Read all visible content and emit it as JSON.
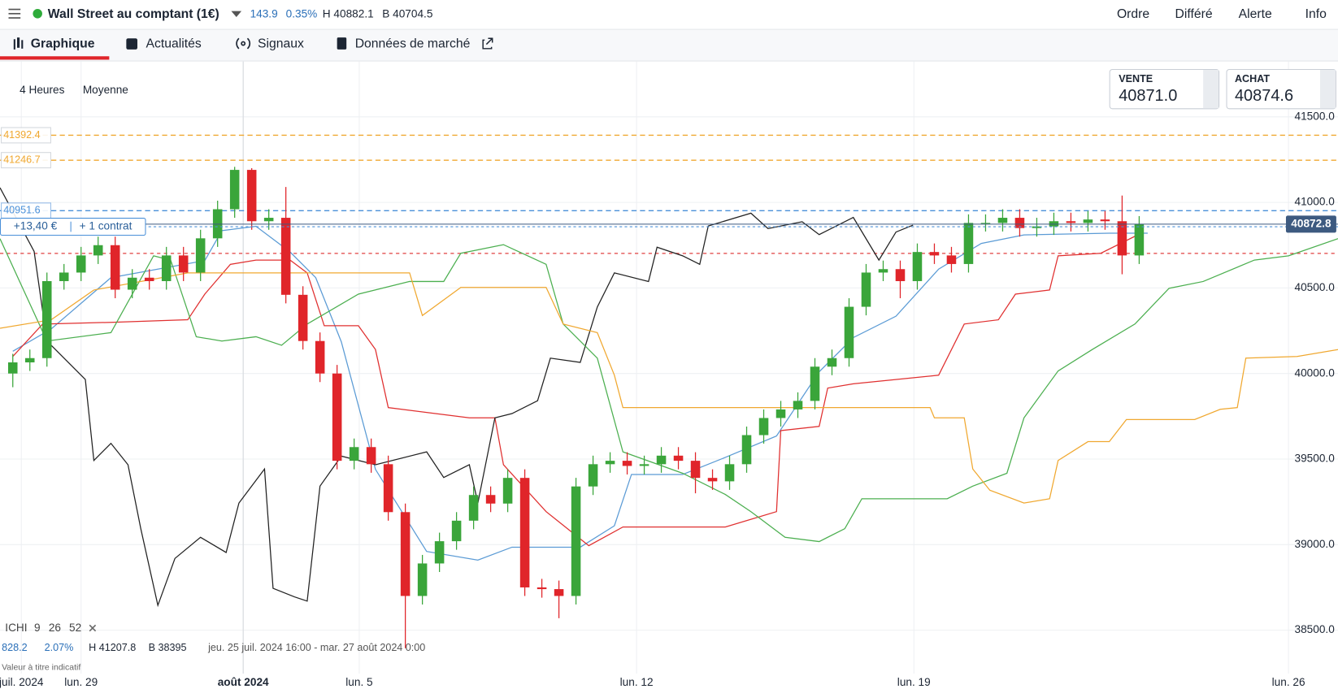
{
  "header": {
    "title": "Wall Street au comptant (1€)",
    "change": "143.9",
    "change_pct": "0.35%",
    "high": "H 40882.1",
    "low": "B 40704.5",
    "actions": [
      "Ordre",
      "Différé",
      "Alerte",
      "Info"
    ]
  },
  "tabs": [
    "Graphique",
    "Actualités",
    "Signaux",
    "Données de marché"
  ],
  "toolbar": {
    "interval": "4 Heures",
    "style": "Moyenne"
  },
  "quote": {
    "sell_label": "VENTE",
    "sell": "40871.0",
    "buy_label": "ACHAT",
    "buy": "40874.6"
  },
  "position": {
    "pnl": "+13,40 €",
    "size": "+ 1 contrat"
  },
  "indicator": {
    "name": "ICHI",
    "params": [
      "9",
      "26",
      "52"
    ]
  },
  "footer": {
    "change": "828.2",
    "change_pct": "2.07%",
    "high": "H 41207.8",
    "low": "B 38395",
    "range": "jeu. 25 juil. 2024 16:00 - mar. 27 août 2024 0:00",
    "note": "Valeur à titre indicatif"
  },
  "chart_data": {
    "type": "candlestick",
    "up_color": "#3aa53a",
    "down_color": "#e0252a",
    "open": [
      40000,
      40065,
      40090,
      40540,
      40590,
      40690,
      40750,
      40490,
      40560,
      40540,
      40690,
      40590,
      40790,
      40960,
      41190,
      40890,
      40910,
      40460,
      40190,
      40000,
      39490,
      39570,
      39470,
      39190,
      38700,
      38890,
      39020,
      39140,
      39290,
      39240,
      39390,
      38750,
      38740,
      38700,
      39340,
      39470,
      39490,
      39460,
      39470,
      39520,
      39490,
      39390,
      39370,
      39470,
      39640,
      39740,
      39790,
      39840,
      40040,
      40090,
      40390,
      40590,
      40610,
      40540,
      40710,
      40690,
      40640,
      40880,
      40880,
      40910,
      40850,
      40860,
      40890,
      40880,
      40900,
      40890,
      40690
    ],
    "high": [
      40115,
      40140,
      40590,
      40640,
      40740,
      40800,
      40800,
      40610,
      40610,
      40740,
      40740,
      40840,
      41010,
      41207.8,
      41200,
      40960,
      41090,
      40510,
      40240,
      40050,
      39620,
      39620,
      39520,
      39240,
      38940,
      39070,
      39190,
      39340,
      39340,
      39440,
      39440,
      38800,
      38790,
      39390,
      39520,
      39540,
      39540,
      39520,
      39570,
      39570,
      39540,
      39440,
      39520,
      39690,
      39790,
      39840,
      39890,
      40090,
      40140,
      40440,
      40640,
      40660,
      40660,
      40760,
      40760,
      40740,
      40930,
      40930,
      40960,
      40960,
      40910,
      40940,
      40940,
      40950,
      40950,
      41040,
      40920
    ],
    "low": [
      39920,
      40015,
      40040,
      40490,
      40540,
      40640,
      40440,
      40440,
      40490,
      40490,
      40540,
      40540,
      40740,
      40910,
      40840,
      40840,
      40410,
      40140,
      39950,
      39440,
      39440,
      39420,
      39140,
      38395,
      38650,
      38840,
      38970,
      39090,
      39190,
      39190,
      38700,
      38690,
      38570,
      38650,
      39290,
      39420,
      39410,
      39410,
      39420,
      39440,
      39300,
      39320,
      39320,
      39420,
      39590,
      39690,
      39740,
      39790,
      39990,
      40040,
      40340,
      40540,
      40440,
      40490,
      40640,
      40590,
      40590,
      40830,
      40830,
      40800,
      40800,
      40810,
      40830,
      40830,
      40840,
      40580,
      40640
    ],
    "close": [
      40065,
      40090,
      40540,
      40590,
      40690,
      40750,
      40490,
      40560,
      40540,
      40690,
      40590,
      40790,
      40960,
      41190,
      40890,
      40910,
      40460,
      40190,
      40000,
      39490,
      39570,
      39470,
      39190,
      38700,
      38890,
      39020,
      39140,
      39290,
      39240,
      39390,
      38750,
      38740,
      38700,
      39340,
      39470,
      39490,
      39460,
      39470,
      39520,
      39490,
      39390,
      39370,
      39470,
      39640,
      39740,
      39790,
      39840,
      40040,
      40090,
      40390,
      40590,
      40610,
      40540,
      40710,
      40690,
      40640,
      40880,
      40880,
      40910,
      40850,
      40860,
      40890,
      40880,
      40900,
      40890,
      40690,
      40872.8
    ],
    "lines": [
      {
        "color": "#5b9bd5",
        "x": [
          0,
          2.25,
          5.75,
          11.25,
          12.25,
          14.25,
          16.25,
          17.75,
          19.25,
          21.25,
          24.25,
          27.25,
          29.25,
          33.25,
          35.25,
          36.25,
          39.25,
          41.75,
          44.75,
          47.25,
          49.25,
          51.75,
          54.25,
          56.75,
          59.25,
          64.25,
          66.5
        ],
        "values": [
          40130,
          40260,
          40560,
          40660,
          40835,
          40860,
          40710,
          40560,
          40185,
          39440,
          38960,
          38910,
          38985,
          38985,
          39110,
          39410,
          39410,
          39510,
          39635,
          40010,
          40210,
          40335,
          40610,
          40760,
          40810,
          40820,
          40820
        ]
      },
      {
        "color": "#e03030",
        "x": [
          0,
          1.75,
          5.75,
          10.25,
          11.25,
          12.75,
          14.25,
          16.25,
          17.25,
          18.25,
          20.25,
          21.25,
          22,
          26.75,
          28.25,
          28.75,
          31.25,
          33.75,
          35.75,
          41.75,
          44.75,
          45,
          47.25,
          47.75,
          49.25,
          54.25,
          55.75,
          57.75,
          58.75,
          60.75,
          61.25,
          63.75,
          66.25
        ],
        "values": [
          40100,
          40289,
          40299,
          40314,
          40464,
          40638,
          40663,
          40663,
          40588,
          40279,
          40279,
          40140,
          39801,
          39741,
          39741,
          39467,
          39193,
          38994,
          39103,
          39103,
          39193,
          39666,
          39691,
          39915,
          39940,
          39990,
          40289,
          40314,
          40464,
          40488,
          40688,
          40703,
          40827
        ]
      },
      {
        "color": "#222222",
        "x": [
          -0.75,
          1.25,
          2,
          4.25,
          4.75,
          5.75,
          6.75,
          7.5,
          8.5,
          9.5,
          11,
          12.5,
          13.25,
          14.75,
          15.25,
          16.5,
          17.25,
          18,
          19.25,
          21.25,
          24.25,
          25.25,
          26.75,
          27.25,
          28.25,
          29.25,
          30.75,
          31.5,
          33.25,
          34.25,
          35.25,
          37.25,
          37.75,
          39.25,
          40.25,
          40.75,
          43.25,
          44.25,
          46.25,
          47.25,
          49.25,
          50.75,
          51.75,
          52.75
        ],
        "values": [
          41086,
          40713,
          40190,
          39965,
          39492,
          39592,
          39467,
          39093,
          38645,
          38919,
          39043,
          38954,
          39243,
          39442,
          38745,
          38695,
          38670,
          39342,
          39517,
          39467,
          39542,
          39392,
          39467,
          39243,
          39741,
          39766,
          39841,
          40090,
          40065,
          40389,
          40588,
          40538,
          40738,
          40688,
          40638,
          40862,
          40937,
          40847,
          40887,
          40812,
          40912,
          40663,
          40827,
          40867
        ]
      },
      {
        "color": "#4caf50",
        "x": [
          -0.75,
          2,
          5.75,
          8.25,
          9.25,
          10.75,
          12.25,
          14.25,
          15.75,
          17.25,
          20.25,
          23.25,
          25.25,
          26.25,
          28.75,
          31.25,
          32.25,
          34.25,
          35.75,
          39.25,
          41.75,
          43.25,
          45.25,
          47.25,
          48.75,
          49.75,
          54.75,
          56.25,
          58.25,
          59.25,
          61.25,
          63.25,
          65.75,
          67.75,
          69.75,
          72.75,
          74.75,
          77.65
        ],
        "values": [
          40788,
          40190,
          40239,
          40688,
          40663,
          40215,
          40190,
          40215,
          40165,
          40289,
          40464,
          40538,
          40538,
          40703,
          40753,
          40638,
          40289,
          40090,
          39542,
          39417,
          39293,
          39193,
          39043,
          39018,
          39093,
          39268,
          39268,
          39342,
          39417,
          39741,
          40015,
          40140,
          40289,
          40498,
          40538,
          40663,
          40688,
          40788
        ]
      },
      {
        "color": "#f0a830",
        "x": [
          -0.75,
          2.25,
          4.75,
          10.25,
          23.25,
          24,
          26.25,
          31.25,
          32.25,
          34.25,
          35.25,
          35.75,
          53.75,
          54,
          55.75,
          56.25,
          57.25,
          59.25,
          60.75,
          61.25,
          63,
          64.25,
          65.25,
          69.25,
          70.75,
          71.75,
          72.25,
          75.25,
          77.65
        ],
        "values": [
          40264,
          40314,
          40488,
          40588,
          40588,
          40339,
          40503,
          40503,
          40289,
          40239,
          39990,
          39801,
          39801,
          39741,
          39741,
          39442,
          39318,
          39243,
          39268,
          39492,
          39602,
          39602,
          39731,
          39731,
          39791,
          39801,
          40090,
          40100,
          40140
        ]
      }
    ],
    "levels": [
      {
        "value": 41392.4,
        "color": "#f0a830"
      },
      {
        "value": 41246.7,
        "color": "#f0a830"
      },
      {
        "value": 40951.6,
        "color": "#4a90d9"
      }
    ],
    "unlabeled_levels": [
      {
        "value": 40702,
        "color": "#e04040"
      }
    ],
    "last": 40872.8,
    "xlim": [
      -0.75,
      77.65
    ],
    "xticks": [
      {
        "value": 0.5,
        "label": "juil. 2024"
      },
      {
        "value": 4,
        "label": "lun. 29"
      },
      {
        "value": 13.5,
        "label": "août 2024"
      },
      {
        "value": 20.3,
        "label": "lun. 5"
      },
      {
        "value": 36.55,
        "label": "lun. 12"
      },
      {
        "value": 52.8,
        "label": "lun. 19"
      },
      {
        "value": 74.75,
        "label": "lun. 26"
      }
    ],
    "ylim": [
      38246,
      41824
    ],
    "yticks": [
      {
        "value": 38500,
        "label": "38500.0"
      },
      {
        "value": 39000,
        "label": "39000.0"
      },
      {
        "value": 39500,
        "label": "39500.0"
      },
      {
        "value": 40000,
        "label": "40000.0"
      },
      {
        "value": 40500,
        "label": "40500.0"
      },
      {
        "value": 41000,
        "label": "41000.0"
      },
      {
        "value": 41500,
        "label": "41500.0"
      }
    ],
    "grid": true
  }
}
